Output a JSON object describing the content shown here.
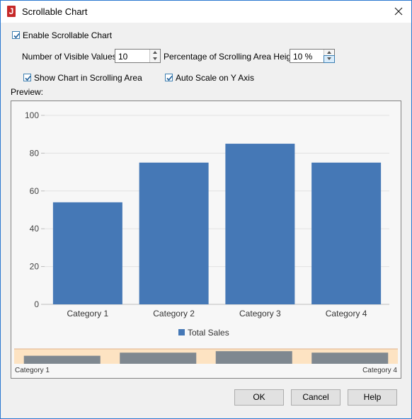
{
  "window": {
    "title": "Scrollable Chart",
    "icon": "app-logo-icon"
  },
  "options": {
    "enable_label": "Enable Scrollable Chart",
    "enable_checked": true,
    "visible_values_label": "Number of Visible Values:",
    "visible_values": "10",
    "percentage_label": "Percentage of Scrolling Area Height:",
    "percentage": "10 %",
    "show_chart_label": "Show Chart in Scrolling Area",
    "show_chart_checked": true,
    "auto_scale_label": "Auto Scale on Y Axis",
    "auto_scale_checked": true
  },
  "preview_label": "Preview:",
  "chart_data": {
    "type": "bar",
    "categories": [
      "Category 1",
      "Category 2",
      "Category 3",
      "Category 4"
    ],
    "series": [
      {
        "name": "Total Sales",
        "values": [
          54,
          75,
          85,
          75
        ],
        "color": "#4578b6"
      }
    ],
    "ylim": [
      0,
      100
    ],
    "yticks": [
      "0",
      "20",
      "40",
      "60",
      "80",
      "100"
    ],
    "ytick_values": [
      0,
      20,
      40,
      60,
      80,
      100
    ],
    "grid": true,
    "legend_position": "bottom",
    "scroll_area": {
      "start_label": "Category 1",
      "end_label": "Category 4",
      "bar_color": "#7f8890",
      "background": "#fde3c2"
    }
  },
  "buttons": {
    "ok": "OK",
    "cancel": "Cancel",
    "help": "Help"
  }
}
